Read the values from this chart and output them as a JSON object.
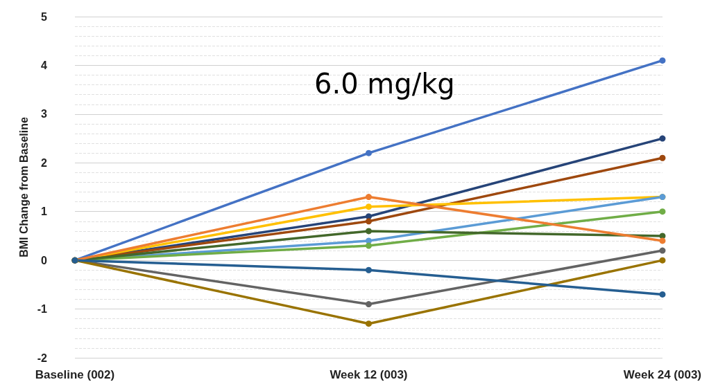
{
  "chart_data": {
    "type": "line",
    "title": "6.0 mg/kg",
    "ylabel": "BMI Change from Baseline",
    "categories": [
      "Baseline (002)",
      "Week 12 (003)",
      "Week 24 (003)"
    ],
    "series": [
      {
        "color": "#4472c4",
        "values": [
          0,
          2.2,
          4.1
        ]
      },
      {
        "color": "#264478",
        "values": [
          0,
          0.9,
          2.5
        ]
      },
      {
        "color": "#9e480e",
        "values": [
          0,
          0.8,
          2.1
        ]
      },
      {
        "color": "#ffc000",
        "values": [
          0,
          1.1,
          1.3
        ]
      },
      {
        "color": "#5b9bd5",
        "values": [
          0,
          0.4,
          1.3
        ]
      },
      {
        "color": "#70ad47",
        "values": [
          0,
          0.3,
          1.0
        ]
      },
      {
        "color": "#43682b",
        "values": [
          0,
          0.6,
          0.5
        ]
      },
      {
        "color": "#ed7d31",
        "values": [
          0,
          1.3,
          0.4
        ]
      },
      {
        "color": "#636363",
        "values": [
          0,
          -0.9,
          0.2
        ]
      },
      {
        "color": "#997300",
        "values": [
          0,
          -1.3,
          0
        ]
      },
      {
        "color": "#255e91",
        "values": [
          0,
          -0.2,
          -0.7
        ]
      }
    ],
    "ylim": [
      -2,
      5
    ],
    "yticks": [
      -2,
      -1,
      0,
      1,
      2,
      3,
      4,
      5
    ],
    "grid": "y",
    "marker": "circle",
    "line_style": "solid"
  }
}
